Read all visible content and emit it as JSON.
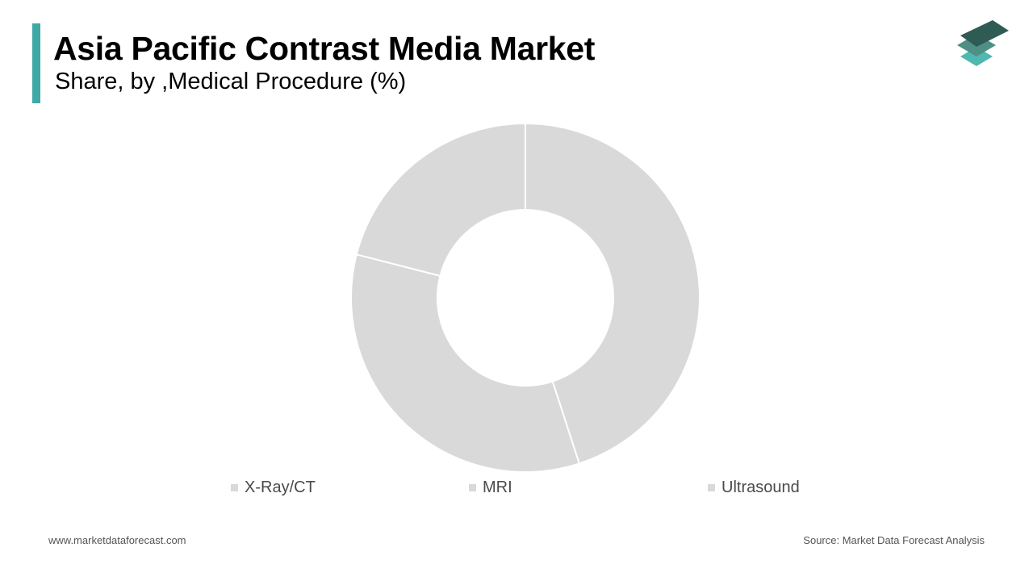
{
  "header": {
    "title": "Asia Pacific Contrast Media Market",
    "subtitle": "Share, by ,Medical Procedure (%)",
    "accent_color": "#3fa9a5"
  },
  "logo": {
    "icon": "stacked-layers-logo-icon"
  },
  "chart_data": {
    "type": "pie",
    "donut": true,
    "title": "Asia Pacific Contrast Media Market",
    "subtitle": "Share, by ,Medical Procedure (%)",
    "categories": [
      "X-Ray/CT",
      "MRI",
      "Ultrasound"
    ],
    "values": [
      45,
      34,
      21
    ],
    "colors": [
      "#d9d9d9",
      "#d9d9d9",
      "#d9d9d9"
    ],
    "legend_position": "bottom"
  },
  "footer": {
    "website": "www.marketdataforecast.com",
    "source": "Source: Market Data Forecast Analysis"
  }
}
